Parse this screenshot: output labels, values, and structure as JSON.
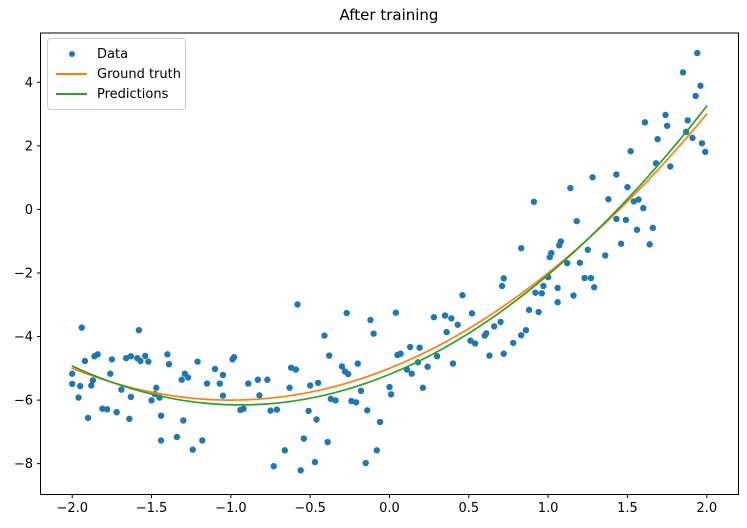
{
  "figure": {
    "title": "After training",
    "background_color": "#ffffff",
    "spine_color": "#000000"
  },
  "chart_data": {
    "type": "scatter",
    "title": "After training",
    "xlabel": "",
    "ylabel": "",
    "grid": false,
    "xlim": [
      -2.2,
      2.2
    ],
    "ylim": [
      -8.97,
      5.55
    ],
    "x_ticks": {
      "values": [
        -2.0,
        -1.5,
        -1.0,
        -0.5,
        0.0,
        0.5,
        1.0,
        1.5,
        2.0
      ],
      "labels": [
        "−2.0",
        "−1.5",
        "−1.0",
        "−0.5",
        "0.0",
        "0.5",
        "1.0",
        "1.5",
        "2.0"
      ]
    },
    "y_ticks": {
      "values": [
        -8,
        -6,
        -4,
        -2,
        0,
        2,
        4
      ],
      "labels": [
        "−8",
        "−6",
        "−4",
        "−2",
        "0",
        "2",
        "4"
      ]
    },
    "legend": {
      "position": "upper left",
      "items": [
        {
          "label": "Data",
          "marker": "dot",
          "color": "#1f77b4"
        },
        {
          "label": "Ground truth",
          "marker": "line",
          "color": "#ff7f0e"
        },
        {
          "label": "Predictions",
          "marker": "line",
          "color": "#2ca02c"
        }
      ]
    },
    "series": [
      {
        "name": "Data",
        "type": "scatter",
        "color": "#1f77b4",
        "marker_radius": 3.2,
        "points": [
          [
            -2.0,
            -5.17
          ],
          [
            -1.92,
            -4.77
          ],
          [
            -2.0,
            -5.49
          ],
          [
            -1.95,
            -5.56
          ],
          [
            -1.96,
            -5.92
          ],
          [
            -1.86,
            -4.62
          ],
          [
            -1.84,
            -4.56
          ],
          [
            -1.87,
            -5.38
          ],
          [
            -1.88,
            -5.54
          ],
          [
            -1.9,
            -6.56
          ],
          [
            -1.81,
            -6.27
          ],
          [
            -1.78,
            -6.29
          ],
          [
            -1.75,
            -4.72
          ],
          [
            -1.76,
            -5.17
          ],
          [
            -1.72,
            -6.38
          ],
          [
            -1.66,
            -4.68
          ],
          [
            -1.63,
            -4.62
          ],
          [
            -1.69,
            -5.67
          ],
          [
            -1.63,
            -5.9
          ],
          [
            -1.59,
            -4.68
          ],
          [
            -1.57,
            -4.77
          ],
          [
            -1.54,
            -4.61
          ],
          [
            -1.64,
            -6.59
          ],
          [
            -1.52,
            -4.79
          ],
          [
            -1.47,
            -5.61
          ],
          [
            -1.45,
            -5.92
          ],
          [
            -1.48,
            -5.81
          ],
          [
            -1.5,
            -6.01
          ],
          [
            -1.44,
            -6.49
          ],
          [
            -1.4,
            -4.56
          ],
          [
            -1.39,
            -4.87
          ],
          [
            -1.31,
            -5.36
          ],
          [
            -1.29,
            -5.17
          ],
          [
            -1.27,
            -5.29
          ],
          [
            -1.3,
            -6.64
          ],
          [
            -1.21,
            -4.79
          ],
          [
            -1.15,
            -5.48
          ],
          [
            -1.1,
            -5.02
          ],
          [
            -1.05,
            -5.21
          ],
          [
            -1.07,
            -5.48
          ],
          [
            -1.05,
            -5.86
          ],
          [
            -0.99,
            -4.72
          ],
          [
            -0.98,
            -4.65
          ],
          [
            -0.94,
            -6.31
          ],
          [
            -0.92,
            -6.27
          ],
          [
            -0.89,
            -5.48
          ],
          [
            -0.83,
            -5.36
          ],
          [
            -0.82,
            -5.85
          ],
          [
            -0.77,
            -5.36
          ],
          [
            -0.75,
            -6.33
          ],
          [
            -1.44,
            -7.27
          ],
          [
            -1.34,
            -7.16
          ],
          [
            -1.24,
            -7.56
          ],
          [
            -1.18,
            -7.27
          ],
          [
            -0.73,
            -8.08
          ],
          [
            -1.94,
            -3.72
          ],
          [
            -1.58,
            -3.8
          ],
          [
            -0.62,
            -4.98
          ],
          [
            -0.59,
            -5.04
          ],
          [
            -0.38,
            -4.6
          ],
          [
            -0.3,
            -4.94
          ],
          [
            -0.28,
            -5.1
          ],
          [
            -0.2,
            -4.85
          ],
          [
            -0.26,
            -5.18
          ],
          [
            -0.5,
            -5.54
          ],
          [
            -0.45,
            -5.46
          ],
          [
            -0.63,
            -5.61
          ],
          [
            -0.18,
            -5.71
          ],
          [
            0.0,
            -5.59
          ],
          [
            0.01,
            -5.82
          ],
          [
            0.05,
            -4.58
          ],
          [
            0.07,
            -4.54
          ],
          [
            0.13,
            -4.33
          ],
          [
            0.19,
            -4.35
          ],
          [
            0.11,
            -5.04
          ],
          [
            0.14,
            -5.17
          ],
          [
            0.18,
            -4.81
          ],
          [
            0.24,
            -4.95
          ],
          [
            0.3,
            -4.62
          ],
          [
            0.4,
            -4.85
          ],
          [
            0.21,
            -5.61
          ],
          [
            -0.37,
            -5.96
          ],
          [
            -0.34,
            -6.01
          ],
          [
            -0.24,
            -6.03
          ],
          [
            -0.21,
            -6.07
          ],
          [
            -0.14,
            -6.32
          ],
          [
            -0.51,
            -6.34
          ],
          [
            -0.46,
            -6.61
          ],
          [
            -0.71,
            -6.3
          ],
          [
            -0.06,
            -6.69
          ],
          [
            -0.54,
            -7.21
          ],
          [
            -0.39,
            -7.32
          ],
          [
            -0.66,
            -7.58
          ],
          [
            -0.47,
            -7.95
          ],
          [
            -0.15,
            -7.98
          ],
          [
            -0.56,
            -8.21
          ],
          [
            -0.08,
            -7.58
          ],
          [
            0.54,
            -4.22
          ],
          [
            0.63,
            -4.6
          ],
          [
            0.72,
            -4.54
          ],
          [
            -0.58,
            -2.99
          ],
          [
            -0.27,
            -3.26
          ],
          [
            -0.12,
            -3.48
          ],
          [
            -0.1,
            -3.91
          ],
          [
            -0.41,
            -3.97
          ],
          [
            0.04,
            -3.25
          ],
          [
            0.28,
            -3.39
          ],
          [
            0.35,
            -3.34
          ],
          [
            0.39,
            -3.43
          ],
          [
            0.36,
            -3.86
          ],
          [
            0.43,
            -3.63
          ],
          [
            0.46,
            -2.7
          ],
          [
            0.51,
            -4.13
          ],
          [
            0.52,
            -3.27
          ],
          [
            0.61,
            -3.9
          ],
          [
            0.6,
            -3.97
          ],
          [
            0.66,
            -3.68
          ],
          [
            0.71,
            -2.41
          ],
          [
            0.72,
            -2.17
          ],
          [
            0.83,
            -3.96
          ],
          [
            0.86,
            -3.8
          ],
          [
            0.7,
            -3.54
          ],
          [
            0.78,
            -4.2
          ],
          [
            0.91,
            0.24
          ],
          [
            1.14,
            0.67
          ],
          [
            1.38,
            0.32
          ],
          [
            1.54,
            0.25
          ],
          [
            1.57,
            0.31
          ],
          [
            1.6,
            0.04
          ],
          [
            1.18,
            -0.37
          ],
          [
            1.43,
            -0.3
          ],
          [
            1.49,
            -0.33
          ],
          [
            1.56,
            -0.64
          ],
          [
            1.66,
            -0.58
          ],
          [
            1.64,
            -1.1
          ],
          [
            1.46,
            -1.08
          ],
          [
            1.08,
            -1.01
          ],
          [
            0.83,
            -1.22
          ],
          [
            1.02,
            -1.37
          ],
          [
            1.07,
            -1.13
          ],
          [
            1.25,
            -1.27
          ],
          [
            1.36,
            -1.45
          ],
          [
            1.01,
            -1.5
          ],
          [
            1.12,
            -1.69
          ],
          [
            1.2,
            -1.68
          ],
          [
            1.23,
            -2.16
          ],
          [
            1.27,
            -2.16
          ],
          [
            1.29,
            -2.45
          ],
          [
            1.0,
            -2.13
          ],
          [
            0.97,
            -2.41
          ],
          [
            0.92,
            -2.62
          ],
          [
            0.96,
            -2.64
          ],
          [
            1.06,
            -2.47
          ],
          [
            1.06,
            -2.92
          ],
          [
            1.16,
            -2.71
          ],
          [
            0.88,
            -3.16
          ],
          [
            0.94,
            -3.23
          ],
          [
            1.94,
            4.92
          ],
          [
            1.85,
            4.31
          ],
          [
            1.96,
            3.89
          ],
          [
            1.93,
            3.57
          ],
          [
            1.88,
            2.8
          ],
          [
            1.74,
            2.97
          ],
          [
            1.87,
            2.44
          ],
          [
            1.91,
            2.25
          ],
          [
            1.97,
            2.08
          ],
          [
            1.99,
            1.81
          ],
          [
            1.61,
            2.74
          ],
          [
            1.75,
            2.63
          ],
          [
            1.69,
            2.21
          ],
          [
            1.52,
            1.83
          ],
          [
            1.68,
            1.45
          ],
          [
            1.77,
            1.35
          ],
          [
            1.43,
            1.1
          ],
          [
            1.5,
            0.7
          ],
          [
            1.28,
            1.01
          ]
        ]
      },
      {
        "name": "Ground truth",
        "type": "line",
        "color": "#ff7f0e",
        "line_width": 1.7,
        "model": "quadratic",
        "coefficients": {
          "a": 1.0,
          "b": 2.0,
          "c": -5.0
        },
        "x_range": [
          -2.0,
          2.0
        ]
      },
      {
        "name": "Predictions",
        "type": "line",
        "color": "#2ca02c",
        "line_width": 1.7,
        "model": "quadratic",
        "coefficients": {
          "a": 1.088,
          "b": 2.045,
          "c": -5.19
        },
        "x_range": [
          -2.0,
          2.0
        ]
      }
    ]
  }
}
